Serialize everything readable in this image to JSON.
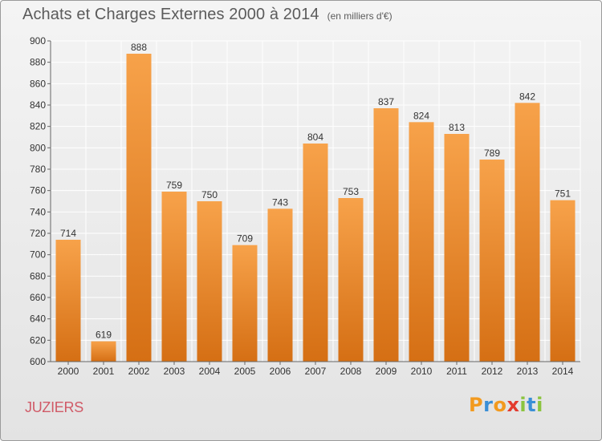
{
  "header": {
    "title": "Achats et Charges Externes 2000 à 2014",
    "unit": "(en milliers d'€)"
  },
  "footer": {
    "commune": "JUZIERS",
    "logo_text": "Proxiti"
  },
  "colors": {
    "bar_light": "#f7a24a",
    "bar_dark": "#d56f14",
    "grid": "#ffffff",
    "axis_text": "#333333",
    "title": "#5b5b5b",
    "commune": "#d05a67",
    "logo_letters": [
      "#f29a1f",
      "#3a8fd6",
      "#f29a1f",
      "#e33b2e",
      "#8bc43f",
      "#3a8fd6",
      "#8bc43f"
    ]
  },
  "chart_data": {
    "type": "bar",
    "title": "Achats et Charges Externes 2000 à 2014",
    "subtitle": "(en milliers d'€)",
    "categories": [
      "2000",
      "2001",
      "2002",
      "2003",
      "2004",
      "2005",
      "2006",
      "2007",
      "2008",
      "2009",
      "2010",
      "2011",
      "2012",
      "2013",
      "2014"
    ],
    "values": [
      714,
      619,
      888,
      759,
      750,
      709,
      743,
      804,
      753,
      837,
      824,
      813,
      789,
      842,
      751
    ],
    "ylim": [
      600,
      900
    ],
    "ytick_step": 20,
    "yticks": [
      600,
      620,
      640,
      660,
      680,
      700,
      720,
      740,
      760,
      780,
      800,
      820,
      840,
      860,
      880,
      900
    ],
    "grid": true,
    "data_labels": true,
    "legend": "none"
  }
}
